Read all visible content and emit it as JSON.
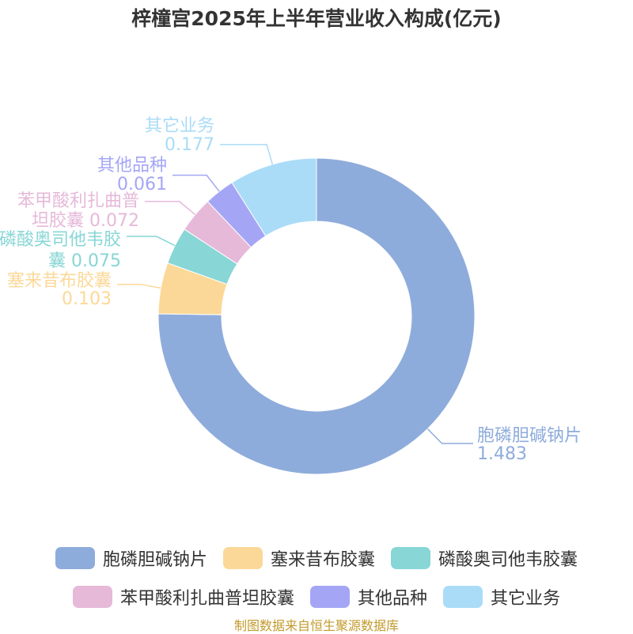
{
  "chart_data": {
    "type": "pie",
    "title": "梓橦宫2025年上半年营业收入构成(亿元)",
    "unit": "亿元",
    "categories": [
      "胞磷胆碱钠片",
      "塞来昔布胶囊",
      "磷酸奥司他韦胶囊",
      "苯甲酸利扎曲普坦胶囊",
      "其他品种",
      "其它业务"
    ],
    "values": [
      1.483,
      0.103,
      0.075,
      0.072,
      0.061,
      0.177
    ],
    "value_labels": [
      "1.483",
      "0.103",
      "0.075",
      "0.072",
      "0.061",
      "0.177"
    ],
    "colors": [
      "#8eacdb",
      "#fcd898",
      "#88d6d6",
      "#e6b9d9",
      "#a4a6f5",
      "#aadcf7"
    ],
    "legend_position": "bottom",
    "donut": true
  },
  "source_text": "制图数据来自恒生聚源数据库"
}
